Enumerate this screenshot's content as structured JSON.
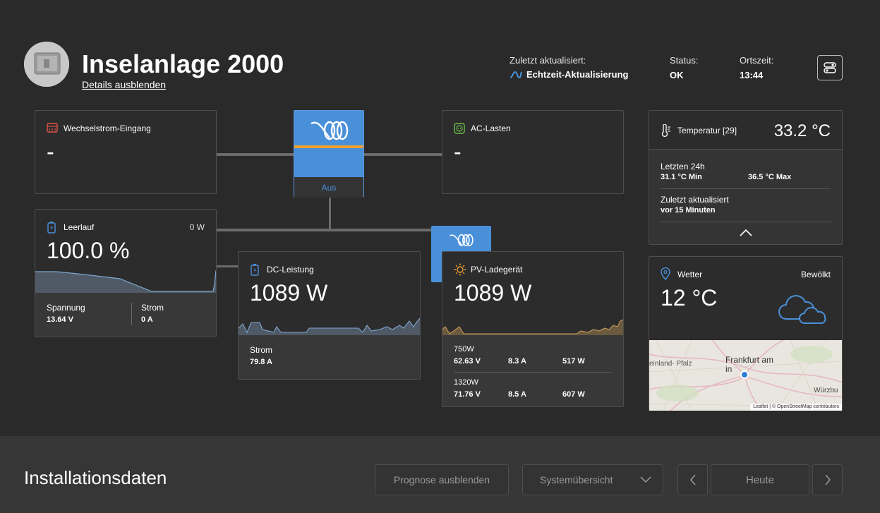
{
  "header": {
    "site_name": "Inselanlage 2000",
    "details_link": "Details ausblenden",
    "last_updated_label": "Zuletzt aktualisiert:",
    "last_updated_value": "Echtzeit-Aktualisierung",
    "status_label": "Status:",
    "status_value": "OK",
    "local_time_label": "Ortszeit:",
    "local_time_value": "13:44"
  },
  "ac_input": {
    "title": "Wechselstrom-Eingang",
    "value": "-"
  },
  "inverter": {
    "state": "Aus"
  },
  "ac_loads": {
    "title": "AC-Lasten",
    "value": "-"
  },
  "battery": {
    "title": "Leerlauf",
    "power": "0 W",
    "soc": "100.0 %",
    "voltage_label": "Spannung",
    "voltage_value": "13.64 V",
    "current_label": "Strom",
    "current_value": "0 A"
  },
  "dc_power": {
    "title": "DC-Leistung",
    "value": "1089 W",
    "current_label": "Strom",
    "current_value": "79.8 A"
  },
  "pv_charger": {
    "title": "PV-Ladegerät",
    "value": "1089 W",
    "trackers": [
      {
        "name": "750W",
        "voltage": "62.63 V",
        "current": "8.3 A",
        "power": "517 W"
      },
      {
        "name": "1320W",
        "voltage": "71.76 V",
        "current": "8.5 A",
        "power": "607 W"
      }
    ]
  },
  "temperature": {
    "title": "Temperatur [29]",
    "value": "33.2 °C",
    "period_label": "Letzten 24h",
    "min_value": "31.1 °C Min",
    "max_value": "36.5 °C Max",
    "updated_label": "Zuletzt aktualisiert",
    "updated_value": "vor 15 Minuten"
  },
  "weather": {
    "title": "Wetter",
    "condition": "Bewölkt",
    "temperature": "12 °C",
    "map_labels": {
      "city": "Frankfurt am Main",
      "city_visible": "Frankfurt am\nin",
      "west": "einland-\nPfalz",
      "east": "Würzbu"
    },
    "attribution": "Leaflet | © OpenStreetMap contributors"
  },
  "bottom": {
    "title": "Installationsdaten",
    "forecast_button": "Prognose ausblenden",
    "view_select": "Systemübersicht",
    "today_button": "Heute"
  },
  "colors": {
    "background": "#2a2a2a",
    "card": "#2c2c2c",
    "accent_blue": "#4a90d9",
    "orange": "#f0a030",
    "ac_input_icon": "#e0534a",
    "ac_loads_icon": "#6dbf4b"
  }
}
